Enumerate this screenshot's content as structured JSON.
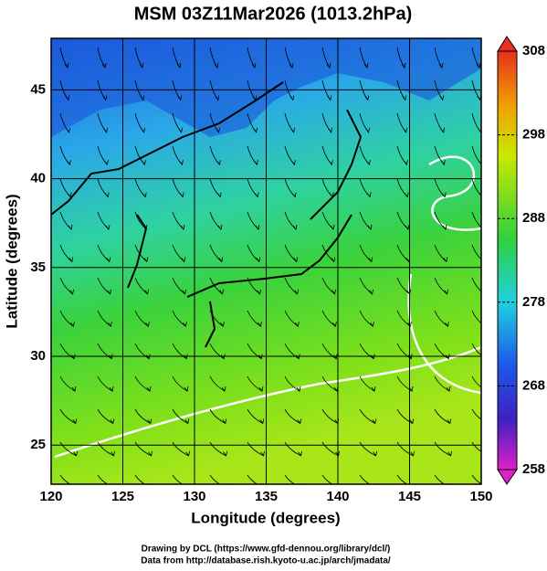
{
  "title": "MSM 03Z11Mar2026 (1013.2hPa)",
  "x_axis": {
    "label": "Longitude (degrees)",
    "lim": [
      120,
      150
    ],
    "ticks": [
      120,
      125,
      130,
      135,
      140,
      145,
      150
    ]
  },
  "y_axis": {
    "label": "Latitude  (degrees)",
    "lim": [
      22.8,
      47.9
    ],
    "ticks": [
      25,
      30,
      35,
      40,
      45
    ]
  },
  "colorbar": {
    "lim": [
      258,
      308
    ],
    "ticks": [
      258,
      268,
      278,
      288,
      298,
      308
    ]
  },
  "credits": [
    "Drawing by DCL (https://www.gfd-dennou.org/library/dcl/)",
    "Data from http://database.rish.kyoto-u.ac.jp/arch/jmadata/"
  ]
}
